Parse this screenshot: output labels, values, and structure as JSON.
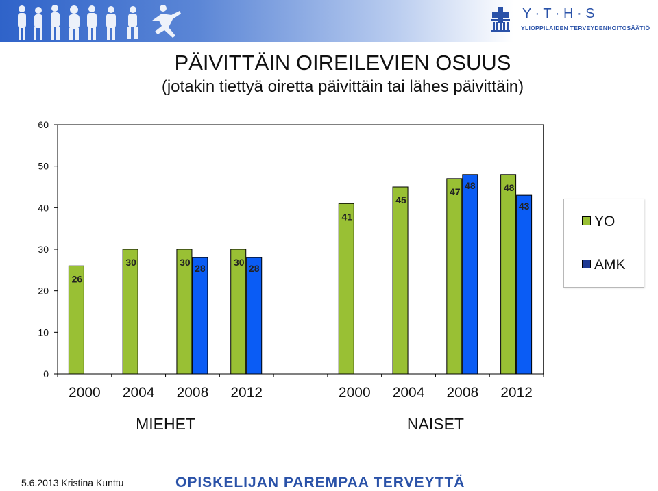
{
  "header": {
    "logo_letters": "Y · T · H · S",
    "logo_text": "YLIOPPILAIDEN TERVEYDENHOITOSÄÄTIÖ"
  },
  "title": "PÄIVITTÄIN OIREILEVIEN OSUUS",
  "subtitle": "(jotakin tiettyä oiretta päivittäin tai lähes päivittäin)",
  "footer": {
    "date_author": "5.6.2013 Kristina Kunttu",
    "slogan": "OPISKELIJAN PAREMPAA TERVEYTTÄ"
  },
  "colors": {
    "YO": "#99c034",
    "AMK": "#0a5cf5",
    "banner": "#2f63c9"
  },
  "chart_data": {
    "type": "bar",
    "ylim": [
      0,
      60
    ],
    "yticks": [
      0,
      10,
      20,
      30,
      40,
      50,
      60
    ],
    "grid": false,
    "legend_position": "right",
    "groups": [
      "MIEHET",
      "NAISET"
    ],
    "categories": [
      "2000",
      "2004",
      "2008",
      "2012",
      "2000",
      "2004",
      "2008",
      "2012"
    ],
    "series": [
      {
        "name": "YO",
        "values": [
          26,
          30,
          30,
          30,
          41,
          45,
          47,
          48
        ]
      },
      {
        "name": "AMK",
        "values": [
          null,
          null,
          28,
          28,
          null,
          null,
          48,
          43
        ]
      }
    ]
  }
}
